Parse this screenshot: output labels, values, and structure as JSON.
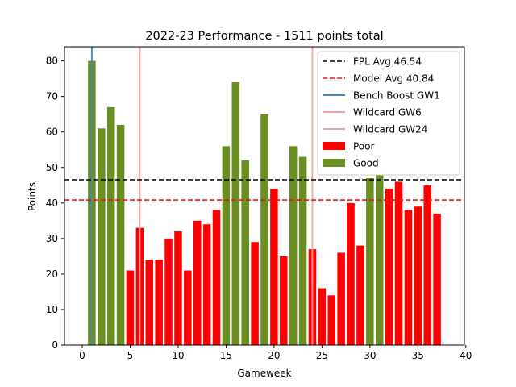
{
  "chart_data": {
    "type": "bar",
    "title": "2022-23 Performance - 1511 points total",
    "xlabel": "Gameweek",
    "ylabel": "Points",
    "xlim": [
      -1.85,
      39.85
    ],
    "ylim": [
      0,
      84
    ],
    "x_ticks": [
      0,
      5,
      10,
      15,
      20,
      25,
      30,
      35,
      40
    ],
    "y_ticks": [
      0,
      10,
      20,
      30,
      40,
      50,
      60,
      70,
      80
    ],
    "grid": false,
    "legend_position": "top-right",
    "colors": {
      "good": "#6b8e23",
      "poor": "#ff0000",
      "fpl_avg": "#000000",
      "model_avg": "#e41a1c",
      "bench_boost": "#4a86b8",
      "wildcard": "#f4a0a0"
    },
    "categories": [
      1,
      2,
      3,
      4,
      5,
      6,
      7,
      8,
      9,
      10,
      11,
      12,
      13,
      14,
      15,
      16,
      17,
      18,
      19,
      20,
      21,
      22,
      23,
      24,
      25,
      26,
      27,
      28,
      29,
      30,
      31,
      32,
      33,
      34,
      35,
      36,
      37
    ],
    "values": [
      80,
      61,
      67,
      62,
      21,
      33,
      24,
      24,
      30,
      32,
      21,
      35,
      34,
      38,
      56,
      74,
      52,
      29,
      65,
      44,
      25,
      56,
      53,
      27,
      16,
      14,
      26,
      40,
      28,
      47,
      48,
      44,
      46,
      38,
      39,
      45,
      37
    ],
    "classes": [
      "Good",
      "Good",
      "Good",
      "Good",
      "Poor",
      "Poor",
      "Poor",
      "Poor",
      "Poor",
      "Poor",
      "Poor",
      "Poor",
      "Poor",
      "Poor",
      "Good",
      "Good",
      "Good",
      "Poor",
      "Good",
      "Poor",
      "Poor",
      "Good",
      "Good",
      "Poor",
      "Poor",
      "Poor",
      "Poor",
      "Poor",
      "Poor",
      "Good",
      "Good",
      "Poor",
      "Poor",
      "Poor",
      "Poor",
      "Poor",
      "Poor"
    ],
    "hlines": [
      {
        "name": "FPL Avg 46.54",
        "y": 46.54,
        "style": "dashed",
        "color": "#000000"
      },
      {
        "name": "Model Avg 40.84",
        "y": 40.84,
        "style": "dashed",
        "color": "#e41a1c"
      }
    ],
    "vlines": [
      {
        "name": "Bench Boost GW1",
        "x": 1,
        "color": "#4a86b8"
      },
      {
        "name": "Wildcard GW6",
        "x": 6,
        "color": "#f4a0a0"
      },
      {
        "name": "Wildcard GW24",
        "x": 24,
        "color": "#f4a0a0"
      }
    ],
    "legend": [
      {
        "label": "FPL Avg 46.54",
        "kind": "dash",
        "color": "#000000"
      },
      {
        "label": "Model Avg 40.84",
        "kind": "dash",
        "color": "#e41a1c"
      },
      {
        "label": "Bench Boost GW1",
        "kind": "line",
        "color": "#4a86b8"
      },
      {
        "label": "Wildcard GW6",
        "kind": "line",
        "color": "#f4a0a0"
      },
      {
        "label": "Wildcard GW24",
        "kind": "line",
        "color": "#f4a0a0"
      },
      {
        "label": "Poor",
        "kind": "patch",
        "color": "#ff0000"
      },
      {
        "label": "Good",
        "kind": "patch",
        "color": "#6b8e23"
      }
    ]
  }
}
